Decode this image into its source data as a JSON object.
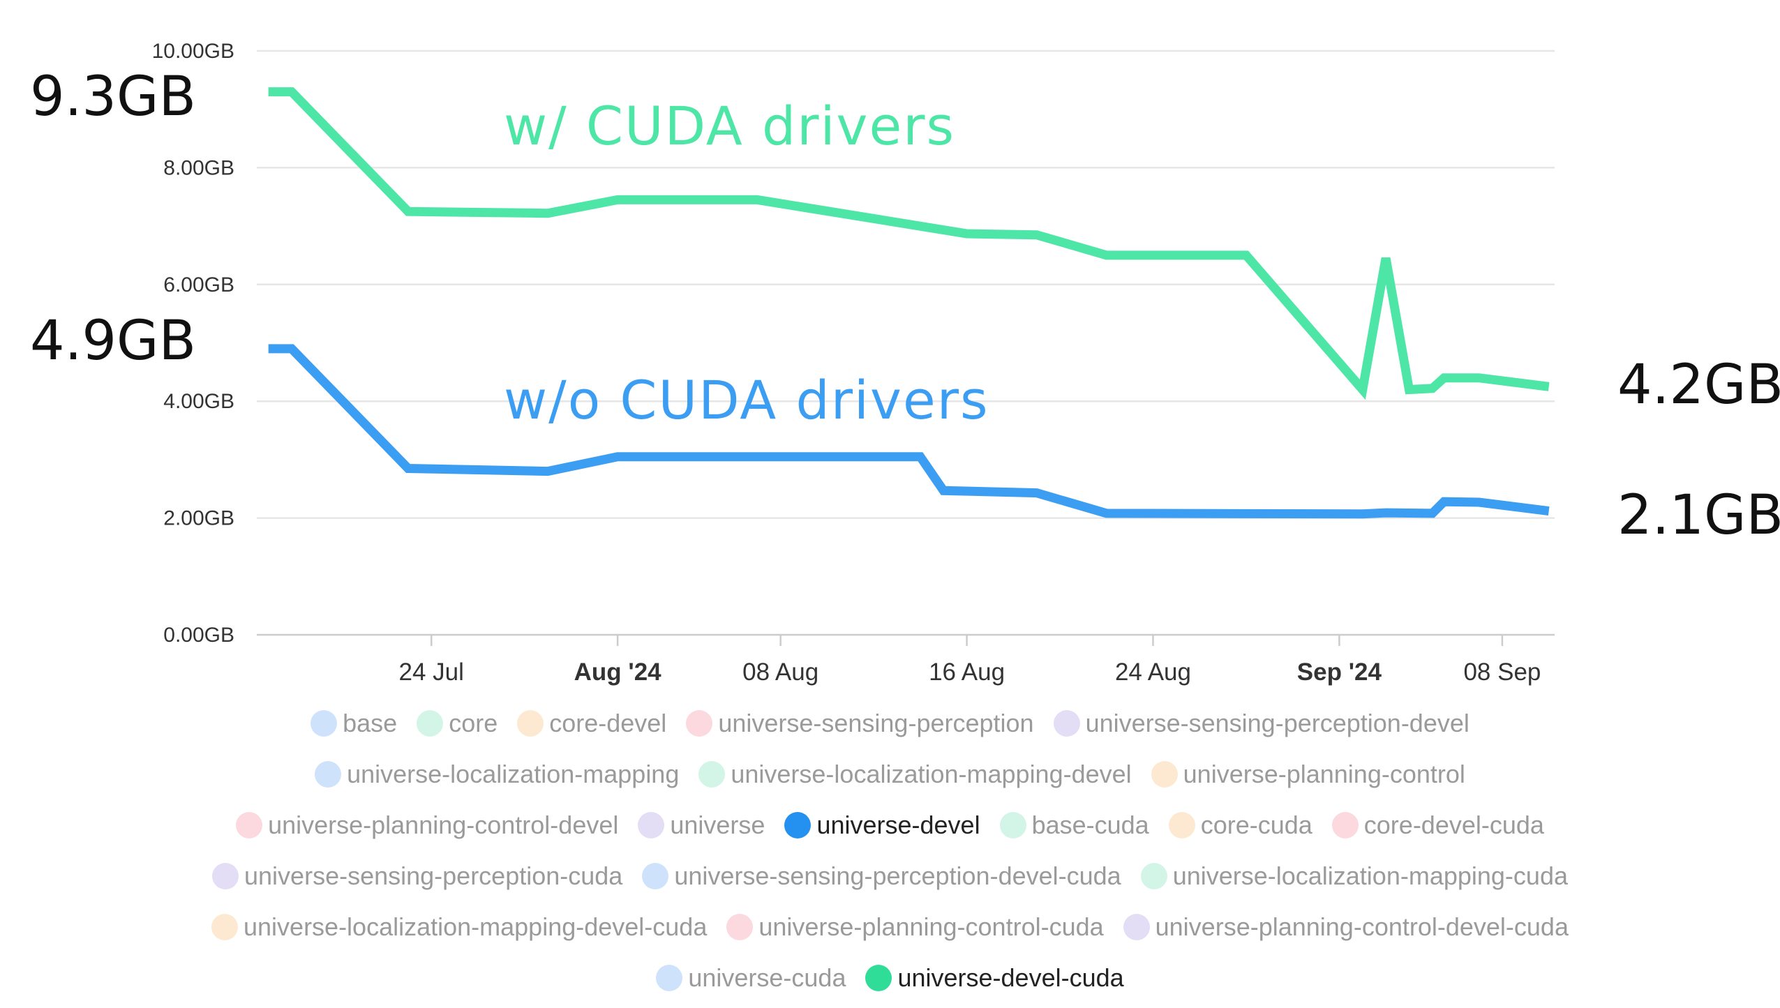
{
  "chart_data": {
    "type": "line",
    "ylim": [
      0,
      10
    ],
    "y_ticks": [
      "0.00GB",
      "2.00GB",
      "4.00GB",
      "6.00GB",
      "8.00GB",
      "10.00GB"
    ],
    "x_ticks": [
      {
        "label": "24 Jul",
        "date": "2024-07-24",
        "major": false
      },
      {
        "label": "Aug '24",
        "date": "2024-08-01",
        "major": true
      },
      {
        "label": "08 Aug",
        "date": "2024-08-08",
        "major": false
      },
      {
        "label": "16 Aug",
        "date": "2024-08-16",
        "major": false
      },
      {
        "label": "24 Aug",
        "date": "2024-08-24",
        "major": false
      },
      {
        "label": "Sep '24",
        "date": "2024-09-01",
        "major": true
      },
      {
        "label": "08 Sep",
        "date": "2024-09-08",
        "major": false
      }
    ],
    "xlim": [
      "2024-07-16T12:00",
      "2024-09-10T06:00"
    ],
    "grid": true,
    "series": [
      {
        "name": "universe-devel-cuda",
        "color": "#4de6a6",
        "points": [
          [
            "2024-07-17",
            9.3
          ],
          [
            "2024-07-18",
            9.3
          ],
          [
            "2024-07-23",
            7.25
          ],
          [
            "2024-07-29",
            7.22
          ],
          [
            "2024-08-01",
            7.45
          ],
          [
            "2024-08-07",
            7.45
          ],
          [
            "2024-08-16",
            6.87
          ],
          [
            "2024-08-19",
            6.85
          ],
          [
            "2024-08-22",
            6.5
          ],
          [
            "2024-08-28",
            6.5
          ],
          [
            "2024-09-02",
            4.2
          ],
          [
            "2024-09-03",
            6.45
          ],
          [
            "2024-09-04",
            4.2
          ],
          [
            "2024-09-05",
            4.22
          ],
          [
            "2024-09-05T12:00",
            4.4
          ],
          [
            "2024-09-07",
            4.4
          ],
          [
            "2024-09-10",
            4.25
          ]
        ]
      },
      {
        "name": "universe-devel",
        "color": "#3c9ef2",
        "points": [
          [
            "2024-07-17",
            4.9
          ],
          [
            "2024-07-18",
            4.9
          ],
          [
            "2024-07-23",
            2.85
          ],
          [
            "2024-07-29",
            2.8
          ],
          [
            "2024-08-01",
            3.05
          ],
          [
            "2024-08-14",
            3.05
          ],
          [
            "2024-08-15",
            2.47
          ],
          [
            "2024-08-19",
            2.43
          ],
          [
            "2024-08-22",
            2.08
          ],
          [
            "2024-09-02",
            2.07
          ],
          [
            "2024-09-03",
            2.09
          ],
          [
            "2024-09-05",
            2.08
          ],
          [
            "2024-09-05T12:00",
            2.28
          ],
          [
            "2024-09-07",
            2.27
          ],
          [
            "2024-09-10",
            2.12
          ]
        ]
      }
    ],
    "annotations": [
      {
        "id": "start_cuda",
        "text": "9.3GB"
      },
      {
        "id": "start_nocuda",
        "text": "4.9GB"
      },
      {
        "id": "end_cuda",
        "text": "4.2GB"
      },
      {
        "id": "end_nocuda",
        "text": "2.1GB"
      },
      {
        "id": "label_cuda",
        "text": "w/ CUDA drivers",
        "color": "#4de6a6"
      },
      {
        "id": "label_nocuda",
        "text": "w/o CUDA drivers",
        "color": "#3c9ef2"
      }
    ]
  },
  "legend": {
    "rows": [
      [
        {
          "label": "base",
          "color": "#cfe2fb",
          "active": false
        },
        {
          "label": "core",
          "color": "#d3f5e7",
          "active": false
        },
        {
          "label": "core-devel",
          "color": "#fde9d2",
          "active": false
        },
        {
          "label": "universe-sensing-perception",
          "color": "#fbd9de",
          "active": false
        },
        {
          "label": "universe-sensing-perception-devel",
          "color": "#e3ddf5",
          "active": false
        }
      ],
      [
        {
          "label": "universe-localization-mapping",
          "color": "#cfe2fb",
          "active": false
        },
        {
          "label": "universe-localization-mapping-devel",
          "color": "#d3f5e7",
          "active": false
        },
        {
          "label": "universe-planning-control",
          "color": "#fde9d2",
          "active": false
        }
      ],
      [
        {
          "label": "universe-planning-control-devel",
          "color": "#fbd9de",
          "active": false
        },
        {
          "label": "universe",
          "color": "#e3ddf5",
          "active": false
        },
        {
          "label": "universe-devel",
          "color": "#2491f0",
          "active": true
        },
        {
          "label": "base-cuda",
          "color": "#d3f5e7",
          "active": false
        },
        {
          "label": "core-cuda",
          "color": "#fde9d2",
          "active": false
        },
        {
          "label": "core-devel-cuda",
          "color": "#fbd9de",
          "active": false
        }
      ],
      [
        {
          "label": "universe-sensing-perception-cuda",
          "color": "#e3ddf5",
          "active": false
        },
        {
          "label": "universe-sensing-perception-devel-cuda",
          "color": "#cfe2fb",
          "active": false
        },
        {
          "label": "universe-localization-mapping-cuda",
          "color": "#d3f5e7",
          "active": false
        }
      ],
      [
        {
          "label": "universe-localization-mapping-devel-cuda",
          "color": "#fde9d2",
          "active": false
        },
        {
          "label": "universe-planning-control-cuda",
          "color": "#fbd9de",
          "active": false
        },
        {
          "label": "universe-planning-control-devel-cuda",
          "color": "#e3ddf5",
          "active": false
        }
      ],
      [
        {
          "label": "universe-cuda",
          "color": "#cfe2fb",
          "active": false
        },
        {
          "label": "universe-devel-cuda",
          "color": "#2fdc98",
          "active": true
        }
      ]
    ]
  }
}
